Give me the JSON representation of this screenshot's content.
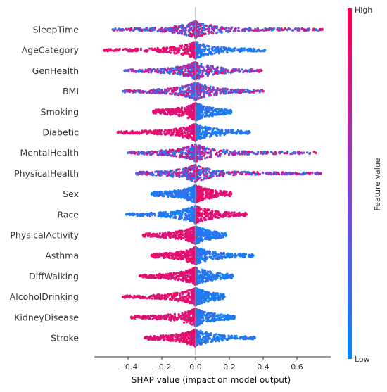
{
  "chart_data": {
    "type": "scatter",
    "subtype": "shap-beeswarm",
    "xlabel": "SHAP value (impact on model output)",
    "xticks": [
      -0.4,
      -0.2,
      0.0,
      0.2,
      0.4,
      0.6
    ],
    "xtick_labels": [
      "−0.4",
      "−0.2",
      "0.0",
      "0.2",
      "0.4",
      "0.6"
    ],
    "xlim": [
      -0.6,
      0.8
    ],
    "features": [
      {
        "name": "SleepTime",
        "min": -0.49,
        "max": 0.75,
        "low_side": "mixed"
      },
      {
        "name": "AgeCategory",
        "min": -0.54,
        "max": 0.41,
        "low_side": "right"
      },
      {
        "name": "GenHealth",
        "min": -0.42,
        "max": 0.39,
        "low_side": "mixed"
      },
      {
        "name": "BMI",
        "min": -0.43,
        "max": 0.4,
        "low_side": "mixed"
      },
      {
        "name": "Smoking",
        "min": -0.25,
        "max": 0.21,
        "low_side": "right"
      },
      {
        "name": "Diabetic",
        "min": -0.46,
        "max": 0.32,
        "low_side": "right"
      },
      {
        "name": "MentalHealth",
        "min": -0.4,
        "max": 0.71,
        "low_side": "mixed"
      },
      {
        "name": "PhysicalHealth",
        "min": -0.35,
        "max": 0.74,
        "low_side": "mixed"
      },
      {
        "name": "Sex",
        "min": -0.26,
        "max": 0.21,
        "low_side": "left"
      },
      {
        "name": "Race",
        "min": -0.41,
        "max": 0.3,
        "low_side": "left"
      },
      {
        "name": "PhysicalActivity",
        "min": -0.31,
        "max": 0.18,
        "low_side": "right"
      },
      {
        "name": "Asthma",
        "min": -0.26,
        "max": 0.34,
        "low_side": "right"
      },
      {
        "name": "DiffWalking",
        "min": -0.33,
        "max": 0.22,
        "low_side": "right"
      },
      {
        "name": "AlcoholDrinking",
        "min": -0.43,
        "max": 0.17,
        "low_side": "right"
      },
      {
        "name": "KidneyDisease",
        "min": -0.38,
        "max": 0.23,
        "low_side": "right"
      },
      {
        "name": "Stroke",
        "min": -0.3,
        "max": 0.35,
        "low_side": "right"
      }
    ],
    "colorbar": {
      "label": "Feature value",
      "high_label": "High",
      "low_label": "Low",
      "low_color": "#1E88E5",
      "high_color": "#FF0D57"
    },
    "grid": false
  }
}
